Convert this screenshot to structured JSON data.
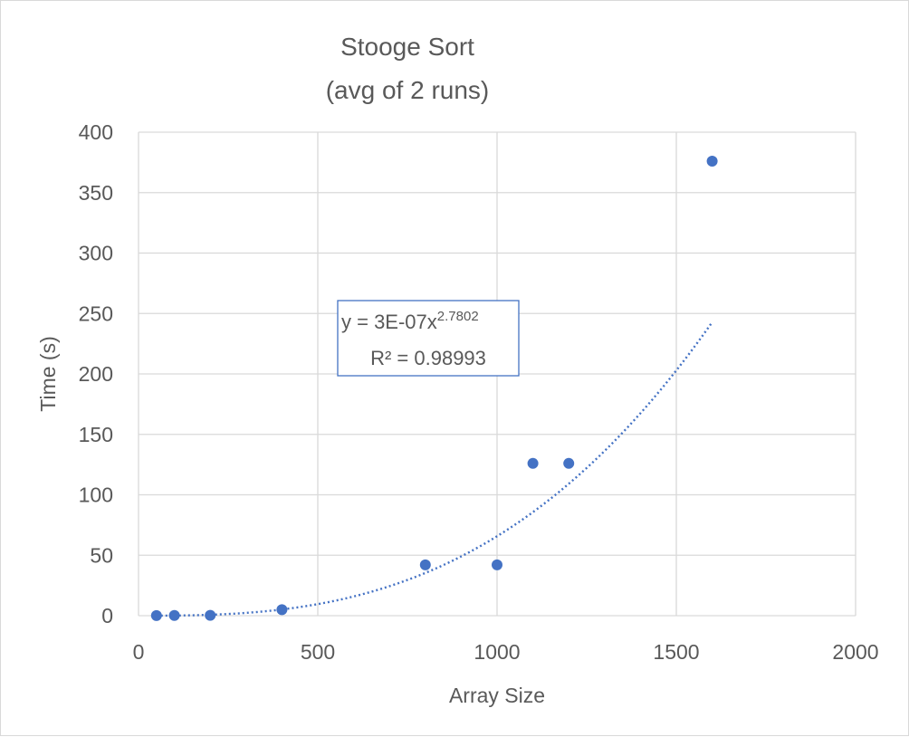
{
  "chart_data": {
    "type": "scatter",
    "title": [
      "Stooge Sort",
      "(avg of 2 runs)"
    ],
    "xlabel": "Array Size",
    "ylabel": "Time (s)",
    "xlim": [
      0,
      2000
    ],
    "ylim": [
      0,
      400
    ],
    "x_ticks": [
      0,
      500,
      1000,
      1500,
      2000
    ],
    "y_ticks": [
      0,
      50,
      100,
      150,
      200,
      250,
      300,
      350,
      400
    ],
    "grid": true,
    "legend": "none",
    "point_color": "#4472c4",
    "series": [
      {
        "x": [
          50,
          100,
          200,
          400,
          800,
          1000,
          1100,
          1200,
          1600
        ],
        "y": [
          0.1,
          0.2,
          0.3,
          5,
          42,
          42,
          126,
          126,
          376
        ]
      }
    ],
    "trendline": {
      "type": "power",
      "coefficient": 3e-07,
      "exponent": 2.7802,
      "x_range": [
        50,
        1600
      ],
      "equation_base": "y = 3E-07x",
      "equation_exponent": "2.7802",
      "r_squared_label": "R² = 0.98993"
    }
  }
}
